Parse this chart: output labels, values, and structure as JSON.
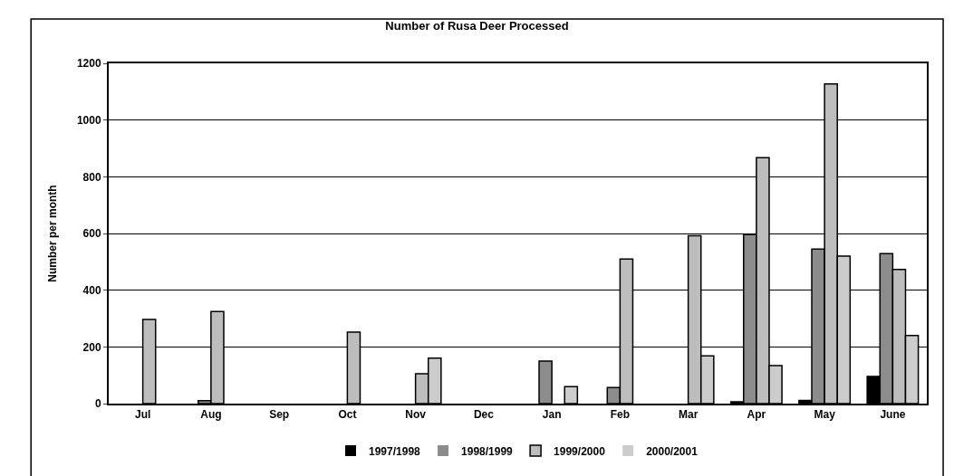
{
  "chart_data": {
    "type": "bar",
    "title": "Number of Rusa Deer Processed",
    "ylabel": "Number per month",
    "categories": [
      "Jul",
      "Aug",
      "Sep",
      "Oct",
      "Nov",
      "Dec",
      "Jan",
      "Feb",
      "Mar",
      "Apr",
      "May",
      "June"
    ],
    "series": [
      {
        "name": "1997/1998",
        "color": "#000000",
        "values": [
          0,
          0,
          0,
          0,
          0,
          0,
          0,
          0,
          0,
          6,
          11,
          96
        ]
      },
      {
        "name": "1998/1999",
        "color": "#8c8c8c",
        "values": [
          0,
          10,
          0,
          0,
          0,
          0,
          150,
          57,
          0,
          596,
          545,
          529
        ]
      },
      {
        "name": "1999/2000",
        "color": "#bdbdbd",
        "values": [
          297,
          325,
          0,
          252,
          105,
          0,
          0,
          510,
          592,
          867,
          1127,
          473
        ]
      },
      {
        "name": "2000/2001",
        "color": "#cccccc",
        "values": [
          0,
          0,
          0,
          0,
          160,
          0,
          60,
          0,
          168,
          134,
          520,
          240
        ]
      }
    ],
    "ylim": [
      0,
      1200
    ],
    "yticks": [
      0,
      200,
      400,
      600,
      800,
      1000,
      1200
    ],
    "grid": "y",
    "legend": "bottom"
  }
}
